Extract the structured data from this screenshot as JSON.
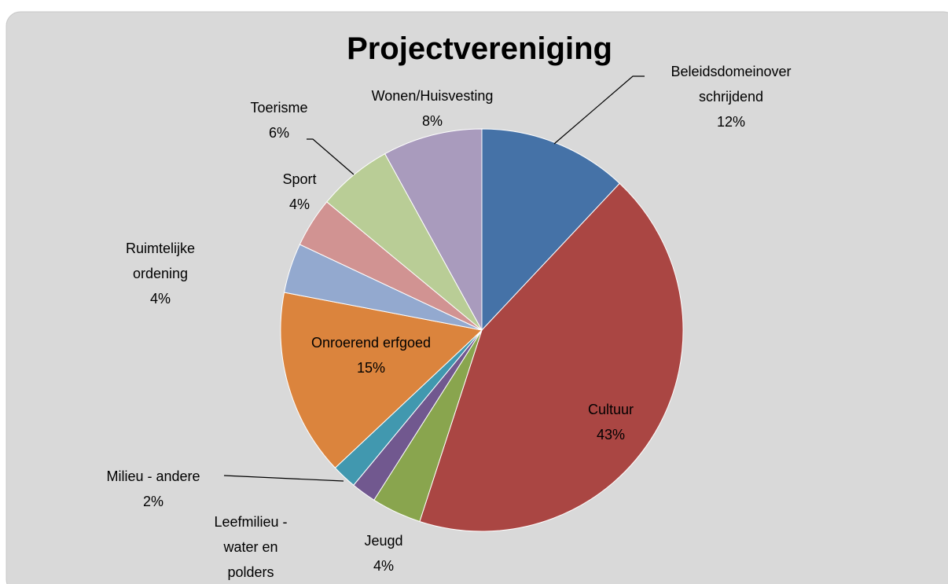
{
  "chart_data": {
    "type": "pie",
    "title": "Projectvereniging",
    "categories": [
      "Beleidsdomeinoverschrijdend",
      "Cultuur",
      "Jeugd",
      "Leefmilieu - water en polders",
      "Milieu - andere",
      "Onroerend erfgoed",
      "Ruimtelijke ordening",
      "Sport",
      "Toerisme",
      "Wonen/Huisvesting"
    ],
    "values": [
      12,
      43,
      4,
      2,
      2,
      15,
      4,
      4,
      6,
      8
    ],
    "value_labels": [
      "12%",
      "43%",
      "4%",
      null,
      "2%",
      "15%",
      "4%",
      "4%",
      "6%",
      "8%"
    ],
    "colors": [
      "#4572a7",
      "#aa4643",
      "#89a54e",
      "#71588f",
      "#4198af",
      "#db843d",
      "#93a9cf",
      "#d19392",
      "#b9cd96",
      "#a99bbd"
    ]
  }
}
